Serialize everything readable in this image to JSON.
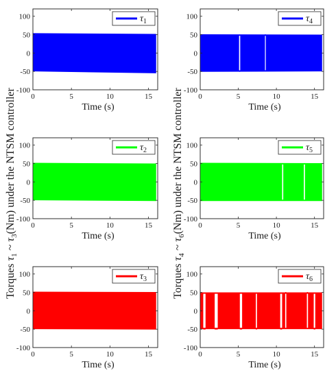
{
  "y_labels": {
    "left": {
      "prefix": "Torques ",
      "sym1": "τ",
      "sub1": "1",
      "mid": " ~ ",
      "sym2": "τ",
      "sub2": "3",
      "suffix": "(Nm) under the NTSM controller"
    },
    "right": {
      "prefix": "Torques ",
      "sym1": "τ",
      "sub1": "4",
      "mid": " ~ ",
      "sym2": "τ",
      "sub2": "6",
      "suffix": "(Nm) under the NTSM controller"
    }
  },
  "chart_data": [
    {
      "id": "tau1",
      "type": "area",
      "legend": {
        "symbol": "τ",
        "sub": "1"
      },
      "color": "#0000ff",
      "xlabel": "Time (s)",
      "xlim": [
        0,
        16.2
      ],
      "ylim": [
        -100,
        120
      ],
      "xticks": [
        0,
        5,
        10,
        15
      ],
      "yticks": [
        -100,
        -50,
        0,
        50,
        100
      ],
      "band": {
        "x_start": 0,
        "x_end": 16,
        "upper": [
          [
            0,
            54
          ],
          [
            16,
            52
          ]
        ],
        "lower": [
          [
            0,
            -50
          ],
          [
            16,
            -55
          ]
        ]
      },
      "gaps": []
    },
    {
      "id": "tau2",
      "type": "area",
      "legend": {
        "symbol": "τ",
        "sub": "2"
      },
      "color": "#00ff00",
      "xlabel": "Time (s)",
      "xlim": [
        0,
        16.2
      ],
      "ylim": [
        -100,
        120
      ],
      "xticks": [
        0,
        5,
        10,
        15
      ],
      "yticks": [
        -100,
        -50,
        0,
        50,
        100
      ],
      "band": {
        "x_start": 0,
        "x_end": 16,
        "upper": [
          [
            0,
            52
          ],
          [
            16,
            50
          ]
        ],
        "lower": [
          [
            0,
            -50
          ],
          [
            16,
            -52
          ]
        ]
      },
      "gaps": []
    },
    {
      "id": "tau3",
      "type": "area",
      "legend": {
        "symbol": "τ",
        "sub": "3"
      },
      "color": "#ff0000",
      "xlabel": "Time (s)",
      "xlim": [
        0,
        16.2
      ],
      "ylim": [
        -100,
        120
      ],
      "xticks": [
        0,
        5,
        10,
        15
      ],
      "yticks": [
        -100,
        -50,
        0,
        50,
        100
      ],
      "band": {
        "x_start": 0,
        "x_end": 16,
        "upper": [
          [
            0,
            52
          ],
          [
            16,
            51
          ]
        ],
        "lower": [
          [
            0,
            -50
          ],
          [
            16,
            -51
          ]
        ]
      },
      "gaps": []
    },
    {
      "id": "tau4",
      "type": "area",
      "legend": {
        "symbol": "τ",
        "sub": "4"
      },
      "color": "#0000ff",
      "xlabel": "Time (s)",
      "xlim": [
        0,
        16.2
      ],
      "ylim": [
        -100,
        120
      ],
      "xticks": [
        0,
        5,
        10,
        15
      ],
      "yticks": [
        -100,
        -50,
        0,
        50,
        100
      ],
      "band": {
        "x_start": 0,
        "x_end": 16,
        "upper": [
          [
            0,
            51
          ],
          [
            16,
            50
          ]
        ],
        "lower": [
          [
            0,
            -51
          ],
          [
            16,
            -50
          ]
        ]
      },
      "gaps": [
        {
          "x": [
            5.1,
            5.25
          ],
          "level": -50
        },
        {
          "x": [
            8.5,
            8.6
          ],
          "level": 50
        }
      ]
    },
    {
      "id": "tau5",
      "type": "area",
      "legend": {
        "symbol": "τ",
        "sub": "5"
      },
      "color": "#00ff00",
      "xlabel": "Time (s)",
      "xlim": [
        0,
        16.2
      ],
      "ylim": [
        -100,
        120
      ],
      "xticks": [
        0,
        5,
        10,
        15
      ],
      "yticks": [
        -100,
        -50,
        0,
        50,
        100
      ],
      "band": {
        "x_start": 0,
        "x_end": 16,
        "upper": [
          [
            0,
            52
          ],
          [
            16,
            51
          ]
        ],
        "lower": [
          [
            0,
            -52
          ],
          [
            16,
            -52
          ]
        ]
      },
      "gaps": [
        {
          "x": [
            10.75,
            10.9
          ],
          "level": -50
        },
        {
          "x": [
            13.6,
            13.75
          ],
          "level": 50
        }
      ]
    },
    {
      "id": "tau6",
      "type": "area",
      "legend": {
        "symbol": "τ",
        "sub": "6"
      },
      "color": "#ff0000",
      "xlabel": "Time (s)",
      "xlim": [
        0,
        16.2
      ],
      "ylim": [
        -100,
        120
      ],
      "xticks": [
        0,
        5,
        10,
        15
      ],
      "yticks": [
        -100,
        -50,
        0,
        50,
        100
      ],
      "band": {
        "x_start": 0,
        "x_end": 16,
        "upper": [
          [
            0,
            50
          ],
          [
            16,
            50
          ]
        ],
        "lower": [
          [
            0,
            -50
          ],
          [
            16,
            -50
          ]
        ]
      },
      "gaps": [
        {
          "x": [
            0.4,
            0.7
          ],
          "level": -50
        },
        {
          "x": [
            1.9,
            2.3
          ],
          "level": -50
        },
        {
          "x": [
            5.2,
            5.5
          ],
          "level": -50
        },
        {
          "x": [
            7.3,
            7.45
          ],
          "level": -50
        },
        {
          "x": [
            10.5,
            10.75
          ],
          "level": -50
        },
        {
          "x": [
            11.15,
            11.3
          ],
          "level": 50
        },
        {
          "x": [
            14.0,
            14.15
          ],
          "level": 50
        },
        {
          "x": [
            14.9,
            15.1
          ],
          "level": -50
        }
      ]
    }
  ]
}
